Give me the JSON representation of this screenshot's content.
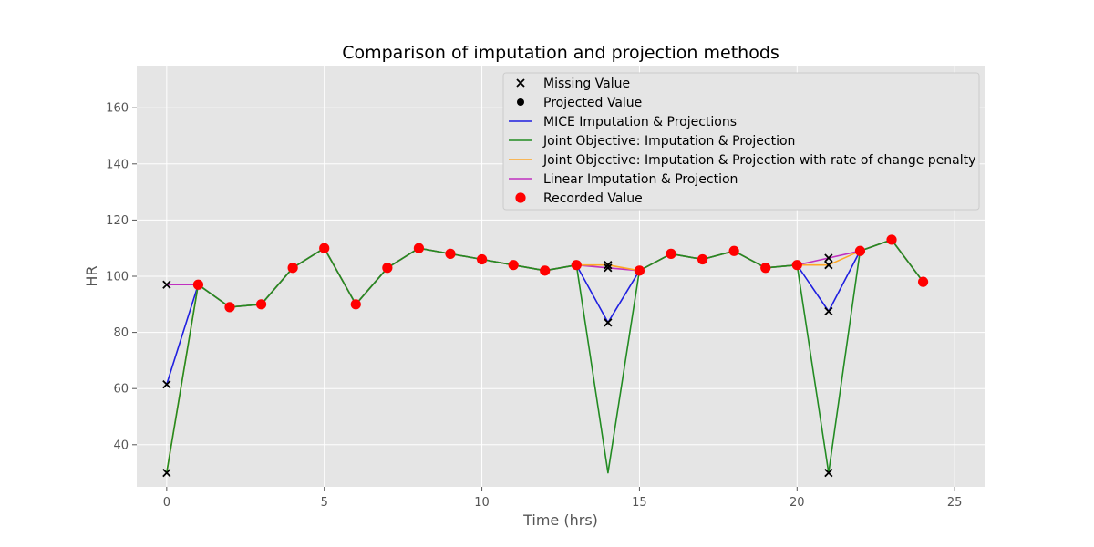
{
  "chart_data": {
    "type": "line",
    "title": "Comparison of imputation and projection methods",
    "xlabel": "Time (hrs)",
    "ylabel": "HR",
    "xlim": [
      -0.95,
      25.95
    ],
    "ylim": [
      25,
      175
    ],
    "xticks": [
      0,
      5,
      10,
      15,
      20,
      25
    ],
    "yticks": [
      40,
      60,
      80,
      100,
      120,
      140,
      160
    ],
    "grid": true,
    "legend_position": "upper-right",
    "colors": {
      "mice": "#1f1fe0",
      "joint": "#228b22",
      "joint_rate": "#ffa726",
      "linear": "#c030c0",
      "recorded": "#ff0000",
      "missing": "#000000",
      "projected": "#000000",
      "panel": "#e5e5e5",
      "grid": "#ffffff"
    },
    "legend": [
      {
        "label": "Missing Value",
        "kind": "x-marker",
        "color": "#000000"
      },
      {
        "label": "Projected Value",
        "kind": "dot",
        "color": "#000000"
      },
      {
        "label": "MICE Imputation & Projections",
        "kind": "line",
        "color": "#1f1fe0"
      },
      {
        "label": "Joint Objective: Imputation & Projection",
        "kind": "line",
        "color": "#228b22"
      },
      {
        "label": "Joint Objective: Imputation & Projection with rate of change penalty",
        "kind": "line",
        "color": "#ffa726"
      },
      {
        "label": "Linear Imputation & Projection",
        "kind": "line",
        "color": "#c030c0"
      },
      {
        "label": "Recorded Value",
        "kind": "big-dot",
        "color": "#ff0000"
      }
    ],
    "series": [
      {
        "name": "Linear Imputation & Projection",
        "key": "linear",
        "x": [
          0,
          1,
          2,
          3,
          4,
          5,
          6,
          7,
          8,
          9,
          10,
          11,
          12,
          13,
          14,
          15,
          16,
          17,
          18,
          19,
          20,
          21,
          22,
          23,
          24
        ],
        "y": [
          97,
          97,
          89,
          90,
          103,
          110,
          90,
          103,
          110,
          108,
          106,
          104,
          102,
          104,
          103,
          102,
          108,
          106,
          109,
          103,
          104,
          106.5,
          109,
          113,
          98
        ]
      },
      {
        "name": "MICE Imputation & Projections",
        "key": "mice",
        "x": [
          0,
          1,
          2,
          3,
          4,
          5,
          6,
          7,
          8,
          9,
          10,
          11,
          12,
          13,
          14,
          15,
          16,
          17,
          18,
          19,
          20,
          21,
          22,
          23,
          24
        ],
        "y": [
          61.5,
          97,
          89,
          90,
          103,
          110,
          90,
          103,
          110,
          108,
          106,
          104,
          102,
          104,
          83.5,
          102,
          108,
          106,
          109,
          103,
          104,
          87.5,
          109,
          113,
          98
        ]
      },
      {
        "name": "Joint Objective: Imputation & Projection with rate of change penalty",
        "key": "joint_rate",
        "x": [
          0,
          1,
          2,
          3,
          4,
          5,
          6,
          7,
          8,
          9,
          10,
          11,
          12,
          13,
          14,
          15,
          16,
          17,
          18,
          19,
          20,
          21,
          22,
          23,
          24
        ],
        "y": [
          30,
          97,
          89,
          90,
          103,
          110,
          90,
          103,
          110,
          108,
          106,
          104,
          102,
          104,
          104,
          102,
          108,
          106,
          109,
          103,
          104,
          104,
          109,
          113,
          98
        ]
      },
      {
        "name": "Joint Objective: Imputation & Projection",
        "key": "joint",
        "x": [
          0,
          1,
          2,
          3,
          4,
          5,
          6,
          7,
          8,
          9,
          10,
          11,
          12,
          13,
          14,
          15,
          16,
          17,
          18,
          19,
          20,
          21,
          22,
          23,
          24
        ],
        "y": [
          30,
          97,
          89,
          90,
          103,
          110,
          90,
          103,
          110,
          108,
          106,
          104,
          102,
          104,
          30,
          102,
          108,
          106,
          109,
          103,
          104,
          30,
          109,
          113,
          98
        ]
      }
    ],
    "recorded": {
      "x": [
        1,
        2,
        3,
        4,
        5,
        6,
        7,
        8,
        9,
        10,
        11,
        12,
        13,
        15,
        16,
        17,
        18,
        19,
        20,
        22,
        23,
        24
      ],
      "y": [
        97,
        89,
        90,
        103,
        110,
        90,
        103,
        110,
        108,
        106,
        104,
        102,
        104,
        102,
        108,
        106,
        109,
        103,
        104,
        109,
        113,
        98
      ]
    },
    "missing": {
      "x": [
        0,
        0,
        0,
        14,
        14,
        14,
        21,
        21,
        21,
        21
      ],
      "y": [
        97,
        61.5,
        30,
        104,
        103,
        83.5,
        30,
        87.5,
        104,
        106.5
      ]
    }
  }
}
